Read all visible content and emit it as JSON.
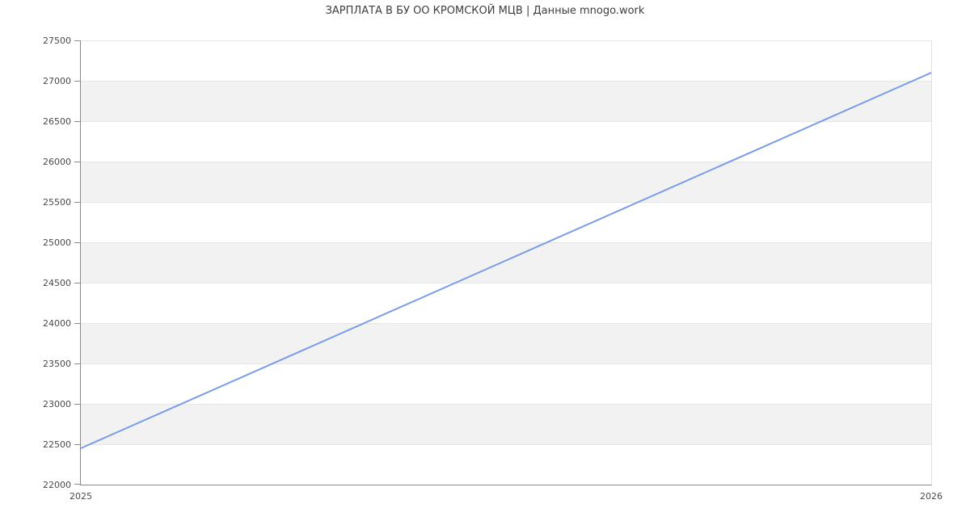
{
  "chart_data": {
    "type": "line",
    "title": "ЗАРПЛАТА В БУ ОО КРОМСКОЙ МЦВ | Данные mnogo.work",
    "x": [
      2025,
      2026
    ],
    "xtick_labels": [
      "2025",
      "2026"
    ],
    "values": [
      22450,
      27100
    ],
    "xlabel": "",
    "ylabel": "",
    "ylim": [
      22000,
      27500
    ],
    "ytick_step": 500,
    "ytick_labels": [
      "22000",
      "22500",
      "23000",
      "23500",
      "24000",
      "24500",
      "25000",
      "25500",
      "26000",
      "26500",
      "27000",
      "27500"
    ],
    "grid": true,
    "legend": false,
    "band_fill_between_gridlines": true,
    "colors": {
      "line": "#7a9ce8",
      "band": "#f2f2f2",
      "grid": "#e6e6e6",
      "axis": "#8a8a8a",
      "right_border": "#e0e0e0",
      "tick_text": "#4a4a4a",
      "title_text": "#3d3d3d",
      "background": "#ffffff"
    }
  }
}
